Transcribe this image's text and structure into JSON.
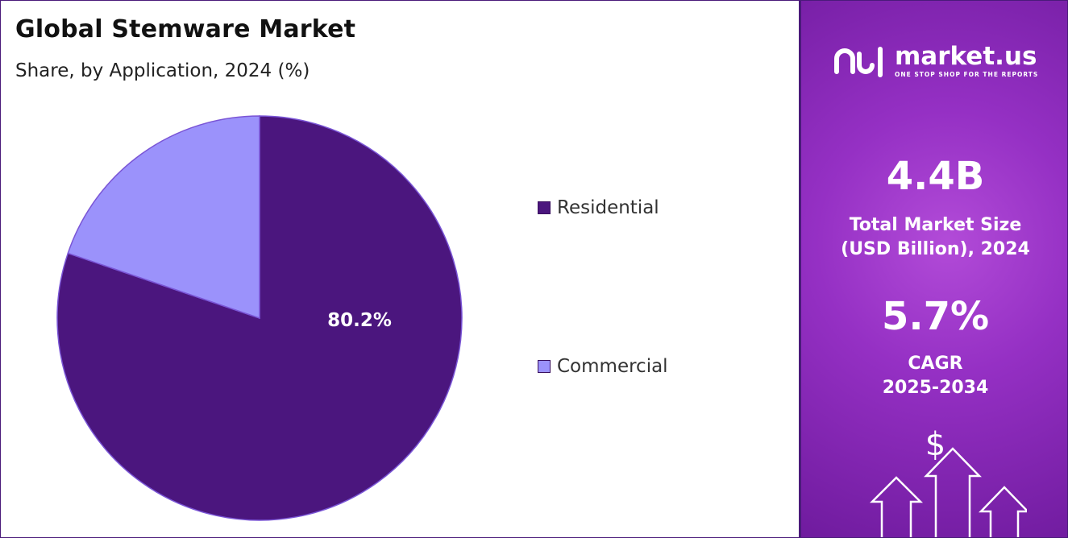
{
  "chart_data": {
    "type": "pie",
    "title": "Global Stemware Market",
    "subtitle": "Share, by Application, 2024 (%)",
    "slices": [
      {
        "name": "Residential",
        "value": 80.2,
        "label": "80.2%",
        "color": "#4b167e"
      },
      {
        "name": "Commercial",
        "value": 19.8,
        "label": "",
        "color": "#9b92fb"
      }
    ],
    "legend_position": "right"
  },
  "sidebar": {
    "brand": "market.us",
    "tagline": "ONE STOP SHOP FOR THE REPORTS",
    "market_size_value": "4.4B",
    "market_size_line1": "Total Market Size",
    "market_size_line2": "(USD Billion), 2024",
    "cagr_value": "5.7%",
    "cagr_label": "CAGR",
    "cagr_period": "2025-2034",
    "currency_symbol": "$"
  }
}
